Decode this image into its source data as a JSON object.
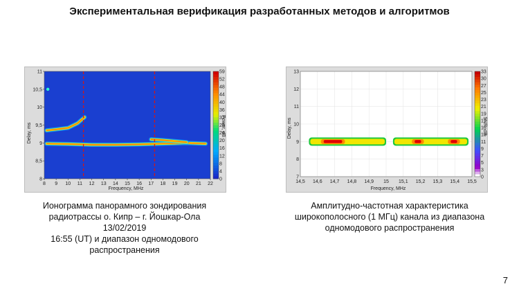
{
  "slide": {
    "title": "Экспериментальная верификация разработанных методов и алгоритмов",
    "page_number": "7"
  },
  "left_figure": {
    "caption_lines": [
      "Ионограмма панорамного зондирования",
      "радиотрассы о. Кипр – г. Йошкар-Ола 13/02/2019",
      "16:55 (UT) и диапазон одномодового",
      "распространения"
    ]
  },
  "right_figure": {
    "caption_lines": [
      "Амплитудно-частотная характеристика",
      "широкополосного (1 МГц) канала из диапазона",
      "одномодового распространения"
    ]
  },
  "chart_data": [
    {
      "type": "heatmap",
      "title": "",
      "xlabel": "Frequency, MHz",
      "ylabel": "Delay, ms",
      "xlim": [
        8,
        22
      ],
      "ylim": [
        8,
        11
      ],
      "xticks": [
        "8",
        "9",
        "10",
        "11",
        "12",
        "13",
        "14",
        "15",
        "16",
        "17",
        "18",
        "19",
        "20",
        "21",
        "22"
      ],
      "yticks": [
        "8",
        "8,5",
        "9",
        "9,5",
        "10",
        "10,5",
        "11"
      ],
      "colorbar": {
        "label": "Power, dB",
        "ticks": [
          "0",
          "4",
          "8",
          "12",
          "16",
          "20",
          "24",
          "28",
          "32",
          "36",
          "40",
          "44",
          "48",
          "52",
          "59"
        ]
      },
      "markers": {
        "vertical_dashed_lines_mhz": [
          11.3,
          17.3
        ],
        "color": "#d01818"
      },
      "background_color": "#1a3fd0",
      "traces": [
        {
          "name": "",
          "points": [
            [
              8.2,
              9.35
            ],
            [
              9,
              9.38
            ],
            [
              10,
              9.42
            ],
            [
              10.8,
              9.55
            ],
            [
              11.4,
              9.72
            ]
          ]
        },
        {
          "name": "",
          "points": [
            [
              8.2,
              8.98
            ],
            [
              10,
              8.97
            ],
            [
              12,
              8.95
            ],
            [
              14,
              8.95
            ],
            [
              16,
              8.96
            ],
            [
              18,
              8.98
            ],
            [
              20,
              9.0
            ],
            [
              21.6,
              8.98
            ]
          ]
        },
        {
          "name": "",
          "points": [
            [
              17.0,
              9.1
            ],
            [
              18,
              9.08
            ],
            [
              19,
              9.05
            ],
            [
              20,
              9.02
            ]
          ]
        },
        {
          "name": "",
          "points": [
            [
              8.3,
              10.5
            ]
          ]
        }
      ]
    },
    {
      "type": "heatmap",
      "title": "",
      "xlabel": "Frequency, MHz",
      "ylabel": "Delay, ms",
      "xlim": [
        14.5,
        15.5
      ],
      "ylim": [
        7,
        13
      ],
      "xticks": [
        "14,5",
        "14,6",
        "14,7",
        "14,8",
        "14,9",
        "15",
        "15,1",
        "15,2",
        "15,3",
        "15,4",
        "15,5"
      ],
      "yticks": [
        "7",
        "8",
        "9",
        "10",
        "11",
        "12",
        "13"
      ],
      "colorbar": {
        "label": "SNR, dB",
        "ticks": [
          "0",
          "3",
          "5",
          "7",
          "9",
          "11",
          "13",
          "15",
          "17",
          "19",
          "21",
          "23",
          "25",
          "27",
          "30",
          "33"
        ]
      },
      "background_color": "#ffffff",
      "band": {
        "delay_ms": 9.0,
        "from_mhz": 14.55,
        "to_mhz": 15.48,
        "gap_mhz": [
          15.0,
          15.04
        ]
      },
      "hot_zones_mhz": [
        [
          14.62,
          14.76
        ],
        [
          15.15,
          15.22
        ],
        [
          15.36,
          15.43
        ]
      ]
    }
  ]
}
